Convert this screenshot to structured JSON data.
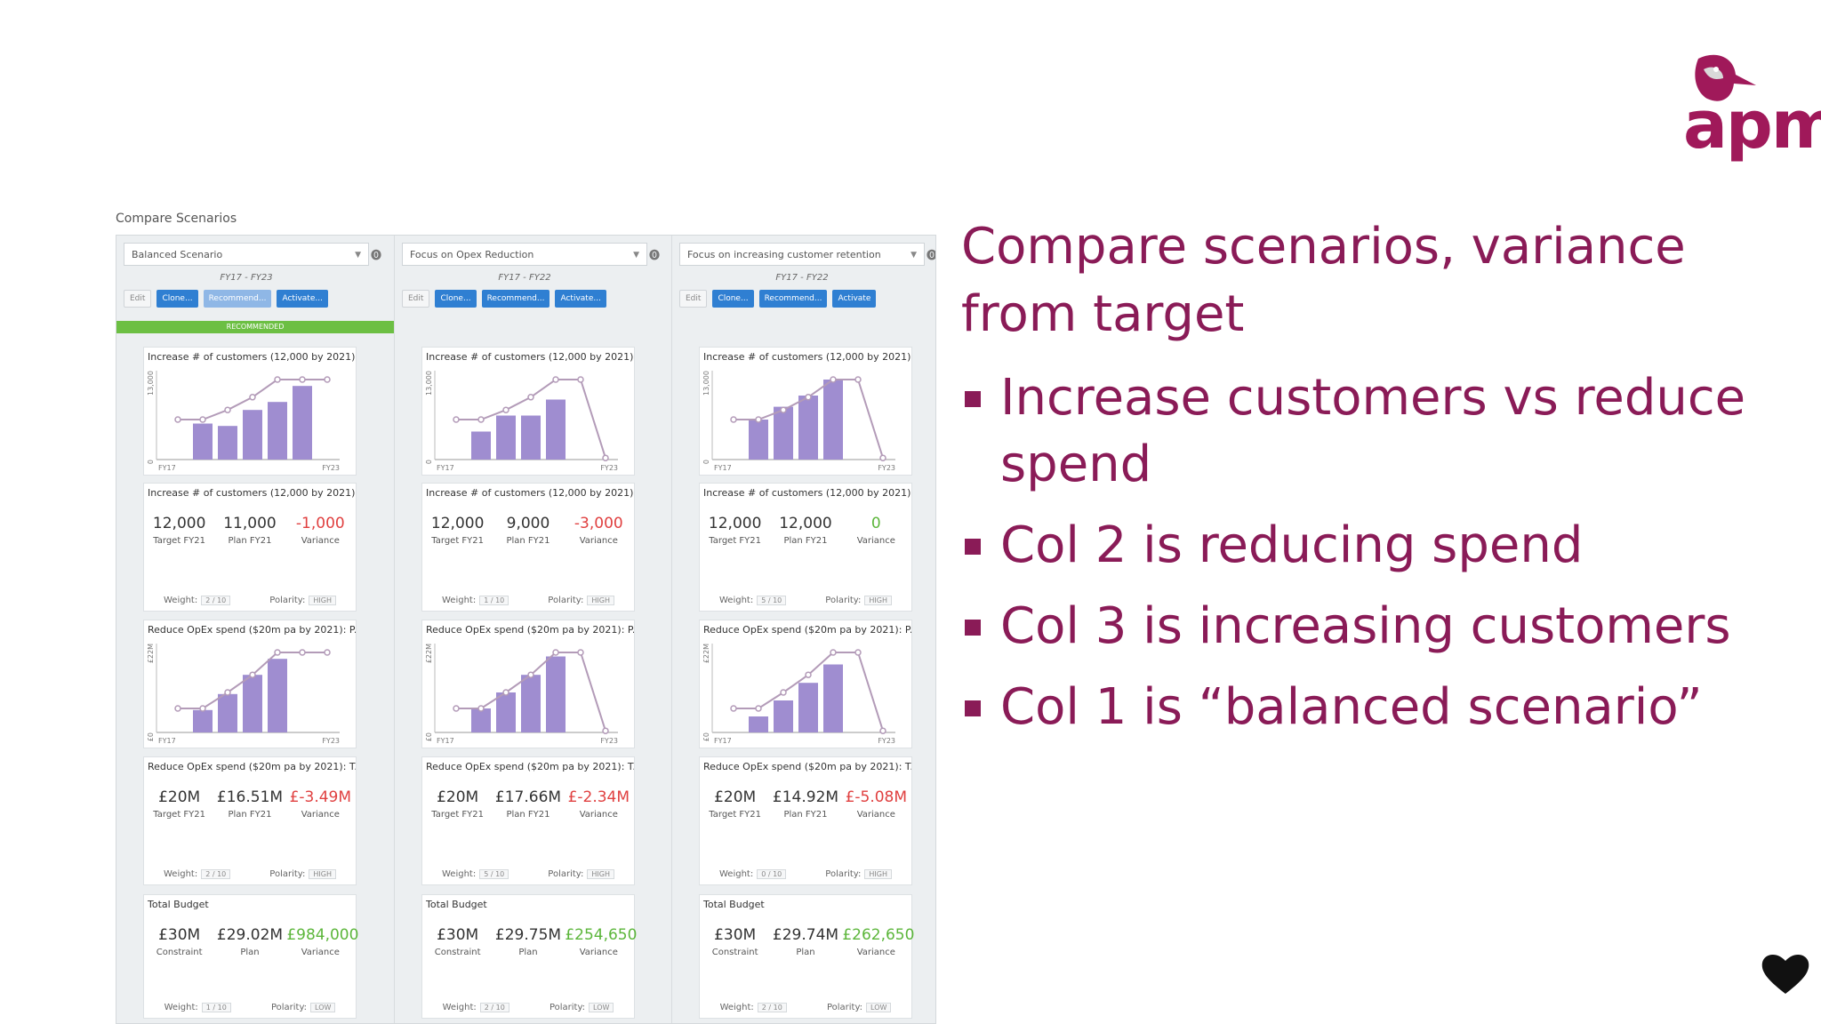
{
  "logo": {
    "text": "apm",
    "colors": {
      "brand": "#a0195a",
      "grey": "#777777"
    }
  },
  "slide": {
    "title": "Compare scenarios, variance from target",
    "bullets": [
      "Increase customers vs reduce spend",
      "Col 2 is reducing spend",
      "Col 3 is increasing customers",
      "Col 1 is “balanced scenario”"
    ]
  },
  "panel": {
    "caption": "Compare Scenarios",
    "recommended_label": "RECOMMENDED",
    "buttons": {
      "edit": "Edit",
      "clone": "Clone...",
      "recommend": "Recommend...",
      "activate": "Activate..."
    },
    "columns": [
      {
        "scenario": "Balanced Scenario",
        "range": "FY17 - FY23",
        "recommended": true,
        "activate_label": "Activate...",
        "customers_chart": {
          "title": "Increase # of customers (12,000 by 2021):...",
          "ymax_label": "13,000",
          "ymin_label": "0",
          "x_start": "FY17",
          "x_end": "FY23",
          "bars": [
            0.45,
            0.42,
            0.62,
            0.72,
            0.92
          ],
          "target": [
            0.5,
            0.5,
            0.62,
            0.78,
            1.0,
            1.0,
            1.0
          ]
        },
        "customers_kpi": {
          "title": "Increase # of customers (12,000 by 2021):...",
          "target": "12,000",
          "target_label": "Target FY21",
          "plan": "11,000",
          "plan_label": "Plan FY21",
          "variance": "-1,000",
          "variance_label": "Variance",
          "variance_sign": "neg",
          "weight": "2 / 10",
          "polarity": "HIGH"
        },
        "opex_chart": {
          "title": "Reduce OpEx spend ($20m pa by 2021): P...",
          "ymax_label": "£22M",
          "ymin_label": "£0",
          "x_start": "FY17",
          "x_end": "FY23",
          "bars": [
            0.28,
            0.48,
            0.72,
            0.92
          ],
          "target": [
            0.3,
            0.3,
            0.5,
            0.72,
            1.0,
            1.0,
            1.0
          ]
        },
        "opex_kpi": {
          "title": "Reduce OpEx spend ($20m pa by 2021): T...",
          "target": "£20M",
          "target_label": "Target FY21",
          "plan": "£16.51M",
          "plan_label": "Plan FY21",
          "variance": "£-3.49M",
          "variance_label": "Variance",
          "variance_sign": "neg",
          "weight": "2 / 10",
          "polarity": "HIGH"
        },
        "budget_kpi": {
          "title": "Total Budget",
          "target": "£30M",
          "target_label": "Constraint",
          "plan": "£29.02M",
          "plan_label": "Plan",
          "variance": "£984,000",
          "variance_label": "Variance",
          "variance_sign": "pos",
          "weight": "1 / 10",
          "polarity": "LOW"
        }
      },
      {
        "scenario": "Focus on Opex Reduction",
        "range": "FY17 - FY22",
        "recommended": false,
        "activate_label": "Activate...",
        "customers_chart": {
          "title": "Increase # of customers (12,000 by 2021):...",
          "ymax_label": "13,000",
          "ymin_label": "0",
          "x_start": "FY17",
          "x_end": "FY23",
          "bars": [
            0.35,
            0.55,
            0.55,
            0.75
          ],
          "target": [
            0.5,
            0.5,
            0.62,
            0.78,
            1.0,
            1.0,
            0.02
          ]
        },
        "customers_kpi": {
          "title": "Increase # of customers (12,000 by 2021):...",
          "target": "12,000",
          "target_label": "Target FY21",
          "plan": "9,000",
          "plan_label": "Plan FY21",
          "variance": "-3,000",
          "variance_label": "Variance",
          "variance_sign": "neg",
          "weight": "1 / 10",
          "polarity": "HIGH"
        },
        "opex_chart": {
          "title": "Reduce OpEx spend ($20m pa by 2021): P...",
          "ymax_label": "£22M",
          "ymin_label": "£0",
          "x_start": "FY17",
          "x_end": "FY23",
          "bars": [
            0.3,
            0.5,
            0.72,
            0.95
          ],
          "target": [
            0.3,
            0.3,
            0.5,
            0.72,
            1.0,
            1.0,
            0.02
          ]
        },
        "opex_kpi": {
          "title": "Reduce OpEx spend ($20m pa by 2021): T...",
          "target": "£20M",
          "target_label": "Target FY21",
          "plan": "£17.66M",
          "plan_label": "Plan FY21",
          "variance": "£-2.34M",
          "variance_label": "Variance",
          "variance_sign": "neg",
          "weight": "5 / 10",
          "polarity": "HIGH"
        },
        "budget_kpi": {
          "title": "Total Budget",
          "target": "£30M",
          "target_label": "Constraint",
          "plan": "£29.75M",
          "plan_label": "Plan",
          "variance": "£254,650",
          "variance_label": "Variance",
          "variance_sign": "pos",
          "weight": "2 / 10",
          "polarity": "LOW"
        }
      },
      {
        "scenario": "Focus on increasing customer retention",
        "range": "FY17 - FY22",
        "recommended": false,
        "activate_label": "Activate",
        "customers_chart": {
          "title": "Increase # of customers (12,000 by 2021):...",
          "ymax_label": "13,000",
          "ymin_label": "0",
          "x_start": "FY17",
          "x_end": "FY23",
          "bars": [
            0.5,
            0.66,
            0.8,
            1.0
          ],
          "target": [
            0.5,
            0.5,
            0.62,
            0.78,
            1.0,
            1.0,
            0.02
          ]
        },
        "customers_kpi": {
          "title": "Increase # of customers (12,000 by 2021):...",
          "target": "12,000",
          "target_label": "Target FY21",
          "plan": "12,000",
          "plan_label": "Plan FY21",
          "variance": "0",
          "variance_label": "Variance",
          "variance_sign": "pos",
          "weight": "5 / 10",
          "polarity": "HIGH"
        },
        "opex_chart": {
          "title": "Reduce OpEx spend ($20m pa by 2021): P...",
          "ymax_label": "£22M",
          "ymin_label": "£0",
          "x_start": "FY17",
          "x_end": "FY23",
          "bars": [
            0.2,
            0.4,
            0.62,
            0.85
          ],
          "target": [
            0.3,
            0.3,
            0.5,
            0.72,
            1.0,
            1.0,
            0.02
          ]
        },
        "opex_kpi": {
          "title": "Reduce OpEx spend ($20m pa by 2021): T...",
          "target": "£20M",
          "target_label": "Target FY21",
          "plan": "£14.92M",
          "plan_label": "Plan FY21",
          "variance": "£-5.08M",
          "variance_label": "Variance",
          "variance_sign": "neg",
          "weight": "0 / 10",
          "polarity": "HIGH"
        },
        "budget_kpi": {
          "title": "Total Budget",
          "target": "£30M",
          "target_label": "Constraint",
          "plan": "£29.74M",
          "plan_label": "Plan",
          "variance": "£262,650",
          "variance_label": "Variance",
          "variance_sign": "pos",
          "weight": "2 / 10",
          "polarity": "LOW"
        }
      }
    ]
  },
  "labels": {
    "weight": "Weight:",
    "polarity": "Polarity:"
  },
  "colors": {
    "title": "#8a1b57",
    "bar": "#9f8dd0",
    "target_line": "#b39bb8",
    "positive": "#5cb63b",
    "negative": "#e04040",
    "recommended": "#6cbf43",
    "button": "#2f7fd2"
  }
}
